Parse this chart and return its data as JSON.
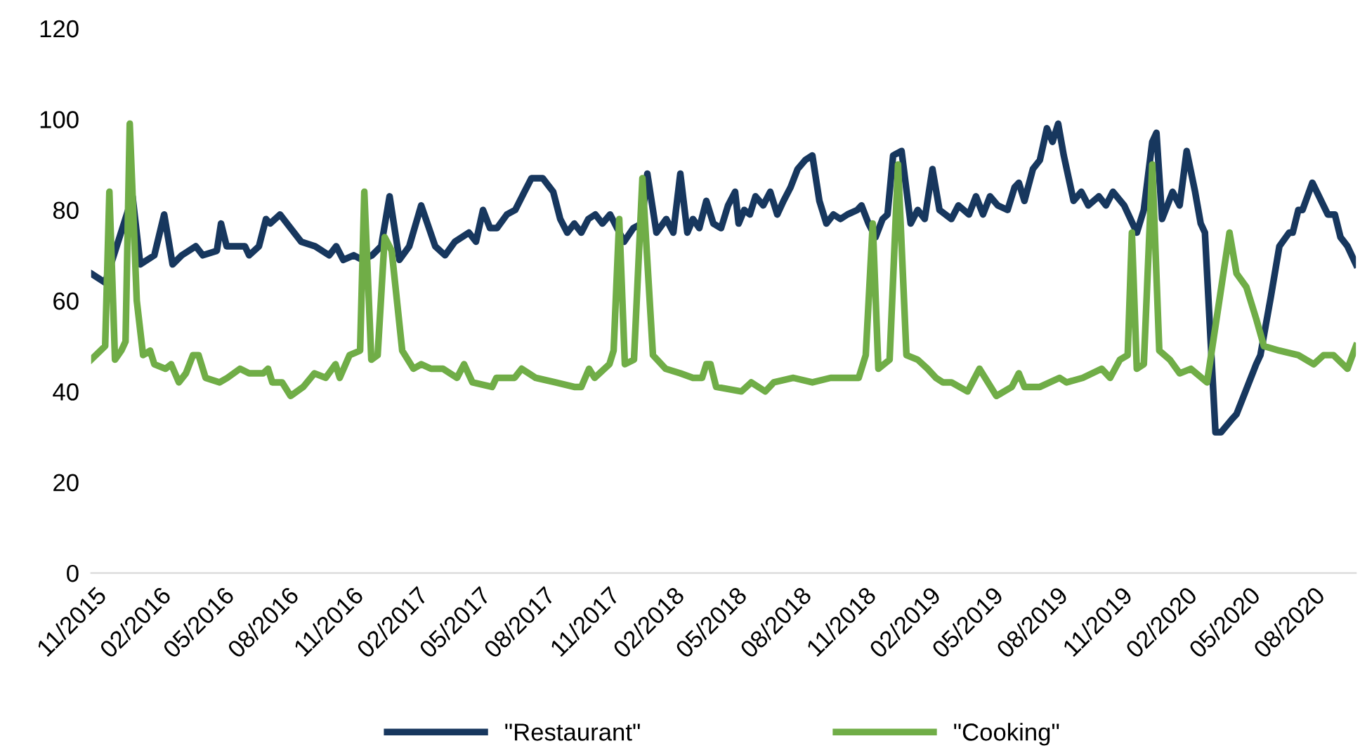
{
  "chart_data": {
    "type": "line",
    "legend": "bottom",
    "grid": false,
    "marker": "none",
    "line_style": "solid",
    "xlim": [
      "2015-10-26",
      "2020-09-30"
    ],
    "ylim": [
      0,
      120
    ],
    "yticks": [
      0,
      20,
      40,
      60,
      80,
      100,
      120
    ],
    "xticks": [
      {
        "value": "2015-11-01",
        "label": "11/2015"
      },
      {
        "value": "2016-02-01",
        "label": "02/2016"
      },
      {
        "value": "2016-05-01",
        "label": "05/2016"
      },
      {
        "value": "2016-08-01",
        "label": "08/2016"
      },
      {
        "value": "2016-11-01",
        "label": "11/2016"
      },
      {
        "value": "2017-02-01",
        "label": "02/2017"
      },
      {
        "value": "2017-05-01",
        "label": "05/2017"
      },
      {
        "value": "2017-08-01",
        "label": "08/2017"
      },
      {
        "value": "2017-11-01",
        "label": "11/2017"
      },
      {
        "value": "2018-02-01",
        "label": "02/2018"
      },
      {
        "value": "2018-05-01",
        "label": "05/2018"
      },
      {
        "value": "2018-08-01",
        "label": "08/2018"
      },
      {
        "value": "2018-11-01",
        "label": "11/2018"
      },
      {
        "value": "2019-02-01",
        "label": "02/2019"
      },
      {
        "value": "2019-05-01",
        "label": "05/2019"
      },
      {
        "value": "2019-08-01",
        "label": "08/2019"
      },
      {
        "value": "2019-11-01",
        "label": "11/2019"
      },
      {
        "value": "2020-02-01",
        "label": "02/2020"
      },
      {
        "value": "2020-05-01",
        "label": "05/2020"
      },
      {
        "value": "2020-08-01",
        "label": "08/2020"
      }
    ],
    "series": [
      {
        "name": "\"Restaurant\"",
        "color": "#17375e",
        "x": [
          "2015-10-26",
          "2015-11-15",
          "2015-12-24",
          "2016-01-04",
          "2016-01-24",
          "2016-02-07",
          "2016-02-19",
          "2016-03-03",
          "2016-03-23",
          "2016-04-02",
          "2016-04-22",
          "2016-04-28",
          "2016-05-06",
          "2016-06-01",
          "2016-06-07",
          "2016-06-21",
          "2016-07-01",
          "2016-07-07",
          "2016-07-21",
          "2016-07-31",
          "2016-08-20",
          "2016-09-09",
          "2016-09-29",
          "2016-10-09",
          "2016-10-19",
          "2016-11-03",
          "2016-11-15",
          "2016-11-29",
          "2016-12-12",
          "2016-12-24",
          "2017-01-07",
          "2017-01-21",
          "2017-02-07",
          "2017-02-27",
          "2017-03-13",
          "2017-03-27",
          "2017-04-16",
          "2017-04-26",
          "2017-05-06",
          "2017-05-16",
          "2017-05-26",
          "2017-06-09",
          "2017-06-21",
          "2017-07-04",
          "2017-07-14",
          "2017-07-30",
          "2017-08-14",
          "2017-08-24",
          "2017-09-03",
          "2017-09-13",
          "2017-09-23",
          "2017-10-03",
          "2017-10-13",
          "2017-10-23",
          "2017-11-03",
          "2017-11-13",
          "2017-11-23",
          "2017-12-06",
          "2017-12-18",
          "2017-12-26",
          "2018-01-08",
          "2018-01-22",
          "2018-02-01",
          "2018-02-11",
          "2018-02-21",
          "2018-03-01",
          "2018-03-10",
          "2018-03-20",
          "2018-03-30",
          "2018-04-10",
          "2018-04-20",
          "2018-04-30",
          "2018-05-05",
          "2018-05-13",
          "2018-05-21",
          "2018-05-29",
          "2018-06-09",
          "2018-06-19",
          "2018-06-29",
          "2018-07-08",
          "2018-07-18",
          "2018-07-28",
          "2018-08-08",
          "2018-08-18",
          "2018-08-28",
          "2018-09-07",
          "2018-09-17",
          "2018-09-27",
          "2018-10-07",
          "2018-10-21",
          "2018-10-27",
          "2018-11-06",
          "2018-11-16",
          "2018-11-26",
          "2018-12-03",
          "2018-12-11",
          "2018-12-23",
          "2019-01-05",
          "2019-01-15",
          "2019-01-25",
          "2019-02-05",
          "2019-02-15",
          "2019-03-04",
          "2019-03-14",
          "2019-03-29",
          "2019-04-08",
          "2019-04-18",
          "2019-04-28",
          "2019-05-09",
          "2019-05-23",
          "2019-06-02",
          "2019-06-08",
          "2019-06-16",
          "2019-06-28",
          "2019-07-08",
          "2019-07-18",
          "2019-07-26",
          "2019-08-03",
          "2019-08-11",
          "2019-08-25",
          "2019-09-05",
          "2019-09-15",
          "2019-09-30",
          "2019-10-10",
          "2019-10-20",
          "2019-11-05",
          "2019-11-23",
          "2019-12-03",
          "2019-12-15",
          "2019-12-21",
          "2019-12-29",
          "2020-01-13",
          "2020-01-23",
          "2020-02-02",
          "2020-02-14",
          "2020-02-22",
          "2020-02-28",
          "2020-03-14",
          "2020-03-22",
          "2020-04-07",
          "2020-04-13",
          "2020-05-11",
          "2020-05-17",
          "2020-06-01",
          "2020-06-13",
          "2020-06-27",
          "2020-07-02",
          "2020-07-10",
          "2020-07-16",
          "2020-07-30",
          "2020-08-21",
          "2020-08-31",
          "2020-09-08",
          "2020-09-18",
          "2020-09-30"
        ],
        "values": [
          66,
          64,
          83,
          68,
          70,
          79,
          68,
          70,
          72,
          70,
          71,
          77,
          72,
          72,
          70,
          72,
          78,
          77,
          79,
          77,
          73,
          72,
          70,
          72,
          69,
          70,
          69,
          70,
          72,
          83,
          69,
          72,
          81,
          72,
          70,
          73,
          75,
          73,
          80,
          76,
          76,
          79,
          80,
          84,
          87,
          87,
          84,
          78,
          75,
          77,
          75,
          78,
          79,
          77,
          79,
          76,
          73,
          76,
          77,
          88,
          75,
          78,
          75,
          88,
          75,
          78,
          76,
          82,
          77,
          76,
          81,
          84,
          77,
          80,
          79,
          83,
          81,
          84,
          79,
          82,
          85,
          89,
          91,
          92,
          82,
          77,
          79,
          78,
          79,
          80,
          81,
          77,
          74,
          78,
          79,
          92,
          93,
          77,
          80,
          78,
          89,
          80,
          78,
          81,
          79,
          83,
          79,
          83,
          81,
          80,
          85,
          86,
          82,
          89,
          91,
          98,
          95,
          99,
          92,
          82,
          84,
          81,
          83,
          81,
          84,
          81,
          75,
          80,
          95,
          97,
          78,
          84,
          81,
          93,
          84,
          77,
          75,
          31,
          31,
          34,
          35,
          46,
          48,
          61,
          72,
          75,
          75,
          80,
          80,
          86,
          79,
          79,
          74,
          72,
          68
        ]
      },
      {
        "name": "\"Cooking\"",
        "color": "#70ad47",
        "x": [
          "2015-10-26",
          "2015-11-15",
          "2015-11-21",
          "2015-11-29",
          "2015-12-08",
          "2015-12-14",
          "2015-12-20",
          "2015-12-30",
          "2016-01-08",
          "2016-01-18",
          "2016-01-24",
          "2016-02-09",
          "2016-02-17",
          "2016-02-28",
          "2016-03-09",
          "2016-03-19",
          "2016-03-27",
          "2016-04-06",
          "2016-04-26",
          "2016-05-07",
          "2016-05-25",
          "2016-06-07",
          "2016-06-27",
          "2016-07-04",
          "2016-07-10",
          "2016-07-24",
          "2016-08-05",
          "2016-08-23",
          "2016-09-08",
          "2016-09-24",
          "2016-10-08",
          "2016-10-14",
          "2016-10-28",
          "2016-11-12",
          "2016-11-18",
          "2016-11-28",
          "2016-12-07",
          "2016-12-17",
          "2016-12-27",
          "2017-01-11",
          "2017-01-27",
          "2017-02-07",
          "2017-02-21",
          "2017-03-10",
          "2017-03-30",
          "2017-04-09",
          "2017-04-21",
          "2017-05-19",
          "2017-05-25",
          "2017-06-20",
          "2017-06-30",
          "2017-07-20",
          "2017-08-17",
          "2017-09-13",
          "2017-09-23",
          "2017-10-04",
          "2017-10-12",
          "2017-11-02",
          "2017-11-08",
          "2017-11-16",
          "2017-11-24",
          "2017-12-07",
          "2017-12-19",
          "2018-01-03",
          "2018-01-21",
          "2018-02-11",
          "2018-03-01",
          "2018-03-14",
          "2018-03-20",
          "2018-03-26",
          "2018-04-03",
          "2018-05-09",
          "2018-05-23",
          "2018-06-12",
          "2018-06-24",
          "2018-07-22",
          "2018-08-18",
          "2018-09-13",
          "2018-10-03",
          "2018-10-23",
          "2018-11-02",
          "2018-11-12",
          "2018-11-20",
          "2018-12-06",
          "2018-12-18",
          "2018-12-30",
          "2019-01-15",
          "2019-01-29",
          "2019-02-10",
          "2019-02-20",
          "2019-03-04",
          "2019-03-27",
          "2019-04-13",
          "2019-05-07",
          "2019-05-29",
          "2019-06-08",
          "2019-06-16",
          "2019-07-08",
          "2019-08-05",
          "2019-08-15",
          "2019-09-07",
          "2019-10-04",
          "2019-10-16",
          "2019-10-30",
          "2019-11-10",
          "2019-11-16",
          "2019-11-23",
          "2019-12-03",
          "2019-12-15",
          "2019-12-25",
          "2020-01-09",
          "2020-01-23",
          "2020-02-08",
          "2020-03-02",
          "2020-04-03",
          "2020-04-13",
          "2020-04-27",
          "2020-05-11",
          "2020-05-22",
          "2020-06-13",
          "2020-07-10",
          "2020-08-01",
          "2020-08-15",
          "2020-08-29",
          "2020-09-18",
          "2020-09-30"
        ],
        "values": [
          47,
          50,
          84,
          47,
          49,
          51,
          99,
          60,
          48,
          49,
          46,
          45,
          46,
          42,
          44,
          48,
          48,
          43,
          42,
          43,
          45,
          44,
          44,
          45,
          42,
          42,
          39,
          41,
          44,
          43,
          46,
          43,
          48,
          49,
          84,
          47,
          48,
          74,
          71,
          49,
          45,
          46,
          45,
          45,
          43,
          46,
          42,
          41,
          43,
          43,
          45,
          43,
          42,
          41,
          41,
          45,
          43,
          46,
          49,
          78,
          46,
          47,
          87,
          48,
          45,
          44,
          43,
          43,
          46,
          46,
          41,
          40,
          42,
          40,
          42,
          43,
          42,
          43,
          43,
          43,
          48,
          77,
          45,
          47,
          90,
          48,
          47,
          45,
          43,
          42,
          42,
          40,
          45,
          39,
          41,
          44,
          41,
          41,
          43,
          42,
          43,
          45,
          43,
          47,
          48,
          75,
          45,
          46,
          90,
          49,
          47,
          44,
          45,
          42,
          75,
          66,
          63,
          56,
          50,
          49,
          48,
          46,
          48,
          48,
          45,
          50
        ]
      }
    ]
  }
}
